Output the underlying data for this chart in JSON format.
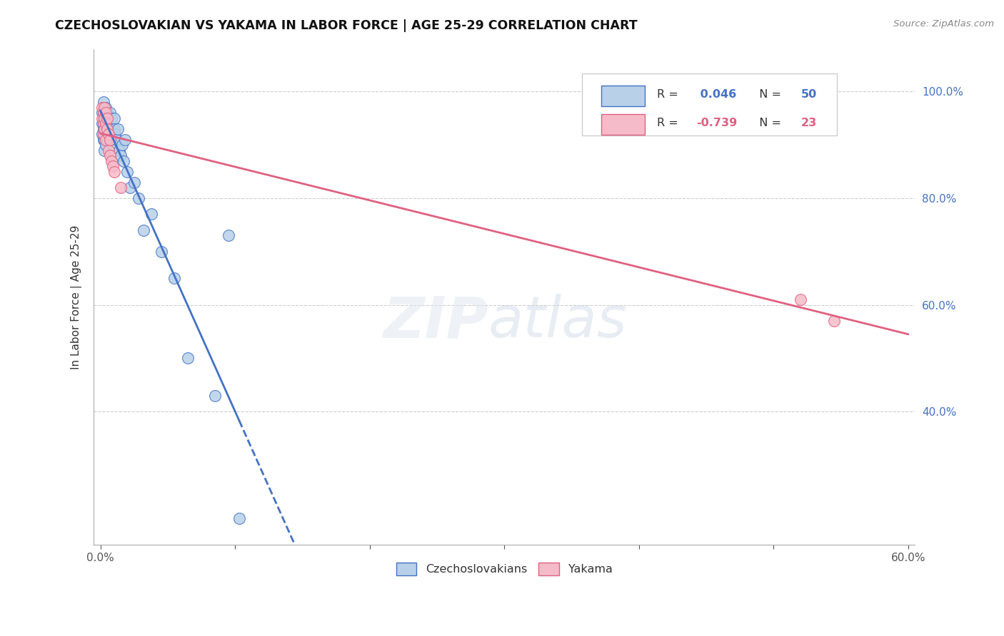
{
  "title": "CZECHOSLOVAKIAN VS YAKAMA IN LABOR FORCE | AGE 25-29 CORRELATION CHART",
  "source_text": "Source: ZipAtlas.com",
  "xlabel": "",
  "ylabel": "In Labor Force | Age 25-29",
  "xlim": [
    -0.005,
    0.605
  ],
  "ylim": [
    0.15,
    1.08
  ],
  "xticks": [
    0.0,
    0.1,
    0.2,
    0.3,
    0.4,
    0.5,
    0.6
  ],
  "yticks": [
    0.4,
    0.6,
    0.8,
    1.0
  ],
  "ytick_labels": [
    "40.0%",
    "60.0%",
    "80.0%",
    "100.0%"
  ],
  "xtick_labels": [
    "0.0%",
    "",
    "",
    "",
    "",
    "",
    "60.0%"
  ],
  "r_czech": 0.046,
  "n_czech": 50,
  "r_yakama": -0.739,
  "n_yakama": 23,
  "blue_color": "#b8d0e8",
  "pink_color": "#f5bbc8",
  "blue_line_color": "#4472c4",
  "pink_line_color": "#e06080",
  "czech_x": [
    0.001,
    0.001,
    0.001,
    0.002,
    0.002,
    0.002,
    0.002,
    0.002,
    0.002,
    0.003,
    0.003,
    0.003,
    0.003,
    0.003,
    0.004,
    0.004,
    0.004,
    0.004,
    0.005,
    0.005,
    0.005,
    0.006,
    0.006,
    0.007,
    0.007,
    0.008,
    0.008,
    0.009,
    0.01,
    0.01,
    0.011,
    0.012,
    0.013,
    0.014,
    0.015,
    0.016,
    0.017,
    0.018,
    0.02,
    0.022,
    0.025,
    0.028,
    0.032,
    0.038,
    0.045,
    0.055,
    0.065,
    0.085,
    0.095,
    0.103
  ],
  "czech_y": [
    0.96,
    0.94,
    0.92,
    0.95,
    0.93,
    0.91,
    0.96,
    0.98,
    0.94,
    0.97,
    0.95,
    0.93,
    0.91,
    0.89,
    0.97,
    0.95,
    0.93,
    0.9,
    0.96,
    0.94,
    0.92,
    0.95,
    0.93,
    0.96,
    0.91,
    0.95,
    0.92,
    0.9,
    0.95,
    0.93,
    0.92,
    0.91,
    0.93,
    0.89,
    0.88,
    0.9,
    0.87,
    0.91,
    0.85,
    0.82,
    0.83,
    0.8,
    0.74,
    0.77,
    0.7,
    0.65,
    0.5,
    0.43,
    0.73,
    0.2
  ],
  "yakama_x": [
    0.001,
    0.001,
    0.002,
    0.002,
    0.002,
    0.003,
    0.003,
    0.003,
    0.004,
    0.004,
    0.004,
    0.005,
    0.005,
    0.006,
    0.006,
    0.007,
    0.007,
    0.008,
    0.009,
    0.01,
    0.015,
    0.52,
    0.545
  ],
  "yakama_y": [
    0.97,
    0.95,
    0.96,
    0.94,
    0.92,
    0.97,
    0.95,
    0.93,
    0.96,
    0.94,
    0.91,
    0.95,
    0.93,
    0.92,
    0.89,
    0.91,
    0.88,
    0.87,
    0.86,
    0.85,
    0.82,
    0.61,
    0.57
  ]
}
